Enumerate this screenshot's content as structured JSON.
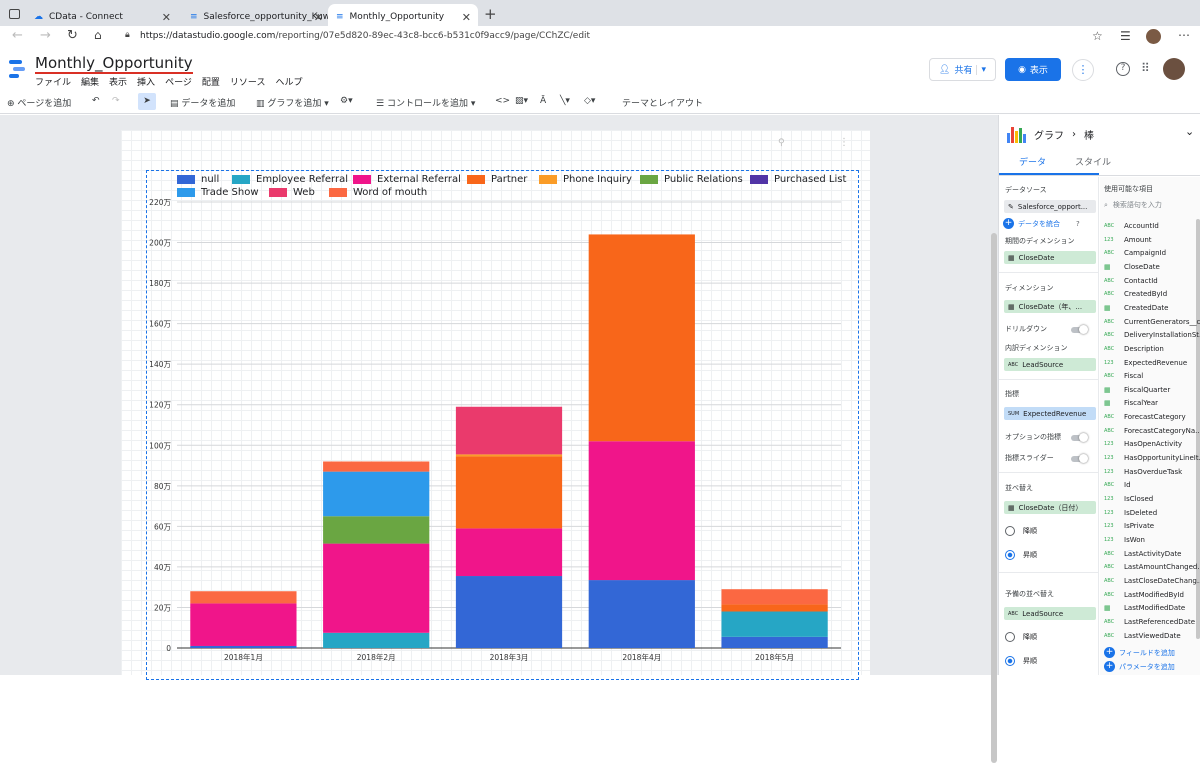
{
  "browser": {
    "tabs": [
      {
        "label": "CData - Connect"
      },
      {
        "label": "Salesforce_opportunity_Kuwa"
      },
      {
        "label": "Monthly_Opportunity"
      }
    ],
    "new_tab": "+",
    "url_host": "https://datastudio.google.com",
    "url_path": "/reporting/07e5d820-89ec-43c8-bcc6-b531c0f9acc9/page/CChZC/edit"
  },
  "app": {
    "title": "Monthly_Opportunity",
    "menus": [
      "ファイル",
      "編集",
      "表示",
      "挿入",
      "ページ",
      "配置",
      "リソース",
      "ヘルプ"
    ],
    "share_label": "共有",
    "view_label": "表示"
  },
  "toolbar": {
    "add_page": "ページを追加",
    "add_data": "データを追加",
    "add_chart": "グラフを追加",
    "add_control": "コントロールを追加",
    "theme_layout": "テーマとレイアウト"
  },
  "chart_data": {
    "type": "bar",
    "stacked": true,
    "categories": [
      "2018年1月",
      "2018年2月",
      "2018年3月",
      "2018年4月",
      "2018年5月"
    ],
    "y_ticks": [
      "0",
      "20万",
      "40万",
      "60万",
      "80万",
      "100万",
      "120万",
      "140万",
      "160万",
      "180万",
      "200万",
      "220万"
    ],
    "ylim": [
      0,
      2200000
    ],
    "legend_position": "top",
    "series": [
      {
        "name": "null",
        "color": "#3367d6",
        "values": [
          10000,
          0,
          355000,
          335000,
          55000
        ]
      },
      {
        "name": "Employee Referral",
        "color": "#26a6c5",
        "values": [
          0,
          75000,
          0,
          0,
          125000
        ]
      },
      {
        "name": "External Referral",
        "color": "#f0158a",
        "values": [
          210000,
          440000,
          235000,
          685000,
          0
        ]
      },
      {
        "name": "Partner",
        "color": "#f8661a",
        "values": [
          0,
          0,
          355000,
          1020000,
          35000
        ]
      },
      {
        "name": "Phone Inquiry",
        "color": "#fa9c27",
        "values": [
          0,
          0,
          10000,
          0,
          0
        ]
      },
      {
        "name": "Public Relations",
        "color": "#6aa642",
        "values": [
          0,
          135000,
          0,
          0,
          0
        ]
      },
      {
        "name": "Purchased List",
        "color": "#5134a6",
        "values": [
          0,
          0,
          0,
          0,
          0
        ]
      },
      {
        "name": "Trade Show",
        "color": "#2d9aeb",
        "values": [
          0,
          220000,
          0,
          0,
          0
        ]
      },
      {
        "name": "Web",
        "color": "#ea3a6c",
        "values": [
          0,
          0,
          235000,
          0,
          0
        ]
      },
      {
        "name": "Word of mouth",
        "color": "#fb6842",
        "values": [
          60000,
          50000,
          0,
          0,
          75000
        ]
      }
    ]
  },
  "panel": {
    "header_a": "グラフ",
    "header_sep": "›",
    "header_b": "棒",
    "tab_data": "データ",
    "tab_style": "スタイル",
    "data_source_label": "データソース",
    "data_source": "Salesforce_opport...",
    "blend_data": "データを統合",
    "period_dim_label": "期間のディメンション",
    "period_dim": "CloseDate",
    "dimension_label": "ディメンション",
    "dimension": "CloseDate（年、...",
    "drilldown_label": "ドリルダウン",
    "breakdown_label": "内訳ディメンション",
    "breakdown": "LeadSource",
    "metric_label": "指標",
    "metric_agg": "SUM",
    "metric": "ExpectedRevenue",
    "optional_metric_label": "オプションの指標",
    "metric_slider_label": "指標スライダー",
    "sort_label": "並べ替え",
    "sort_field": "CloseDate（日付）",
    "sort_desc": "降順",
    "sort_asc": "昇順",
    "secondary_sort_label": "予備の並べ替え",
    "secondary_sort_field": "LeadSource",
    "secondary_desc": "降順",
    "secondary_asc": "昇順",
    "available_fields_label": "使用可能な項目",
    "search_placeholder": "検索語句を入力",
    "fields": [
      {
        "type": "ABC",
        "name": "AccountId"
      },
      {
        "type": "123",
        "name": "Amount"
      },
      {
        "type": "ABC",
        "name": "CampaignId"
      },
      {
        "type": "DATE",
        "name": "CloseDate"
      },
      {
        "type": "ABC",
        "name": "ContactId"
      },
      {
        "type": "ABC",
        "name": "CreatedById"
      },
      {
        "type": "DATE",
        "name": "CreatedDate"
      },
      {
        "type": "ABC",
        "name": "CurrentGenerators__c"
      },
      {
        "type": "ABC",
        "name": "DeliveryInstallationSt.."
      },
      {
        "type": "ABC",
        "name": "Description"
      },
      {
        "type": "123",
        "name": "ExpectedRevenue"
      },
      {
        "type": "ABC",
        "name": "Fiscal"
      },
      {
        "type": "DATE",
        "name": "FiscalQuarter"
      },
      {
        "type": "DATE",
        "name": "FiscalYear"
      },
      {
        "type": "ABC",
        "name": "ForecastCategory"
      },
      {
        "type": "ABC",
        "name": "ForecastCategoryNa.."
      },
      {
        "type": "123",
        "name": "HasOpenActivity"
      },
      {
        "type": "123",
        "name": "HasOpportunityLineIt.."
      },
      {
        "type": "123",
        "name": "HasOverdueTask"
      },
      {
        "type": "ABC",
        "name": "Id"
      },
      {
        "type": "123",
        "name": "IsClosed"
      },
      {
        "type": "123",
        "name": "IsDeleted"
      },
      {
        "type": "123",
        "name": "IsPrivate"
      },
      {
        "type": "123",
        "name": "IsWon"
      },
      {
        "type": "ABC",
        "name": "LastActivityDate"
      },
      {
        "type": "ABC",
        "name": "LastAmountChanged.."
      },
      {
        "type": "ABC",
        "name": "LastCloseDateChang.."
      },
      {
        "type": "ABC",
        "name": "LastModifiedById"
      },
      {
        "type": "DATE",
        "name": "LastModifiedDate"
      },
      {
        "type": "ABC",
        "name": "LastReferencedDate"
      },
      {
        "type": "ABC",
        "name": "LastViewedDate"
      }
    ],
    "add_field": "フィールドを追加",
    "add_parameter": "パラメータを追加"
  }
}
